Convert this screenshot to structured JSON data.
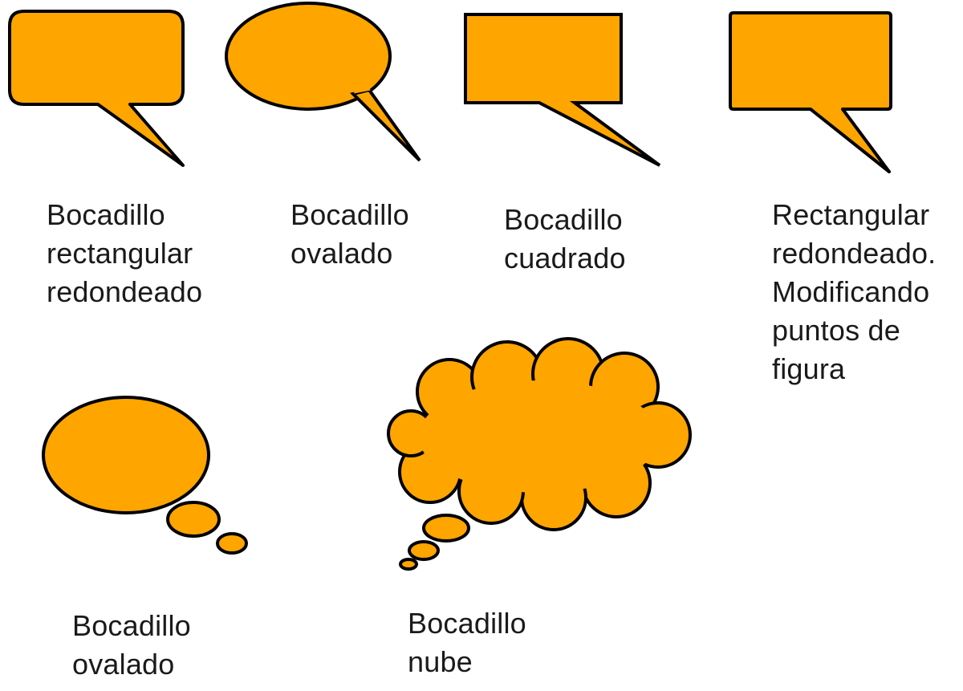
{
  "colors": {
    "fill": "#fea500",
    "stroke": "#000000",
    "text": "#1a1a1a"
  },
  "callouts": [
    {
      "id": "rect-rounded",
      "caption": "Bocadillo\nrectangular\nredondeado"
    },
    {
      "id": "oval",
      "caption": "Bocadillo\novalado"
    },
    {
      "id": "square",
      "caption": "Bocadillo\ncuadrado"
    },
    {
      "id": "rect-modified",
      "caption": "Rectangular\nredondeado.\nModificando\npuntos de\nfigura"
    },
    {
      "id": "thought-oval",
      "caption": "Bocadillo\novalado"
    },
    {
      "id": "cloud",
      "caption": "Bocadillo\nnube"
    }
  ]
}
